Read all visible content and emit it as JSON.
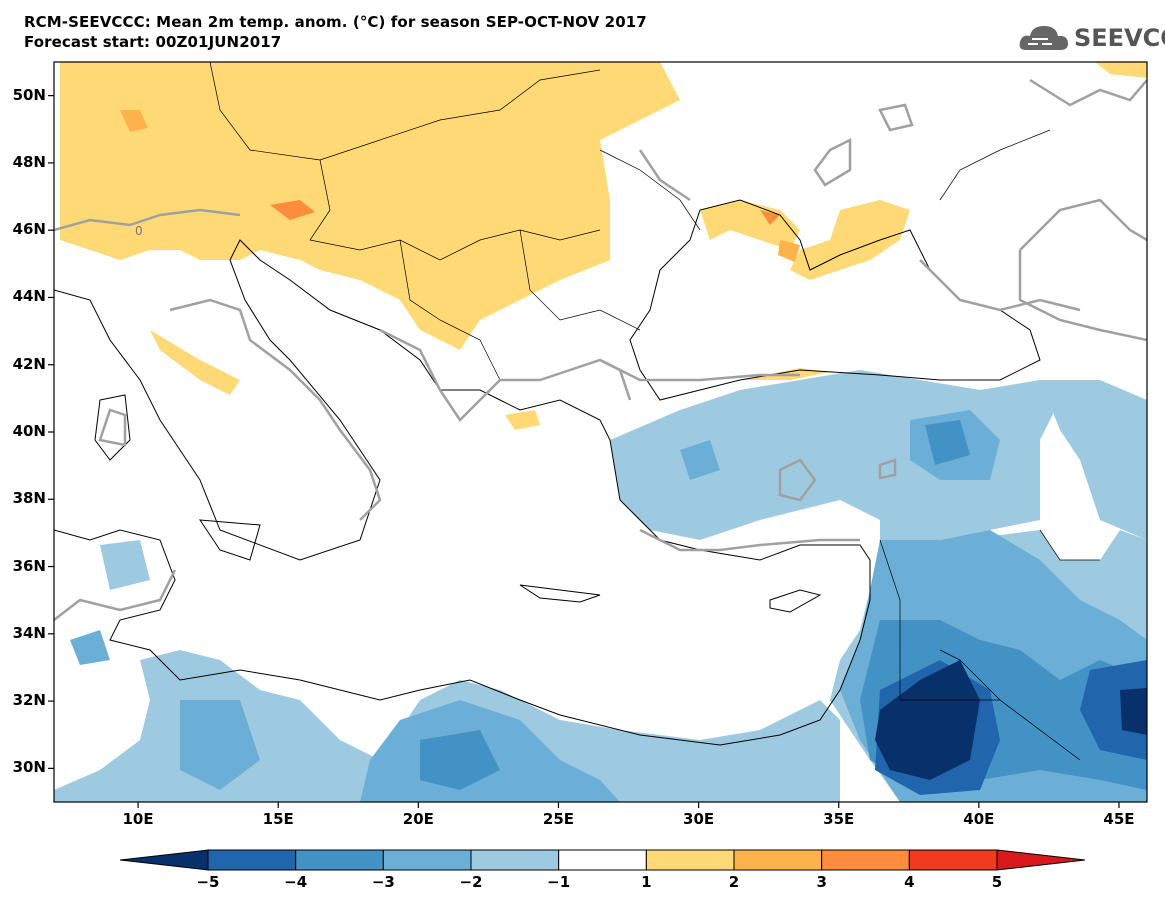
{
  "header": {
    "title_line1": "RCM-SEEVCCC: Mean 2m temp. anom. (°C) for season SEP-OCT-NOV 2017",
    "title_line2": "Forecast start: 00Z01JUN2017"
  },
  "logo": {
    "text": "SEEVCCC",
    "icon": "cloud-logo-icon",
    "color": "#555555"
  },
  "map": {
    "type": "filled-contour-map",
    "variable": "Mean 2m temp. anom. (°C)",
    "zero_contour_label": "0",
    "lat_ticks": [
      "50N",
      "48N",
      "46N",
      "44N",
      "42N",
      "40N",
      "38N",
      "36N",
      "34N",
      "32N",
      "30N"
    ],
    "lon_ticks": [
      "10E",
      "15E",
      "20E",
      "25E",
      "30E",
      "35E",
      "40E",
      "45E"
    ],
    "lat_range": [
      29,
      51
    ],
    "lon_range": [
      7,
      46
    ],
    "colors": {
      "warm_1_2": "#fed976",
      "warm_2_3": "#feb24c",
      "warm_3_4": "#fd8d3c",
      "cold_m1_m2": "#9ecae1",
      "cold_m2_m3": "#6baed6",
      "cold_m3_m4": "#4292c6",
      "cold_m4_m5": "#2166ac",
      "cold_below_m5": "#08306b",
      "zero_contour": "#a0a0a0",
      "coast": "#000000"
    }
  },
  "colorbar": {
    "ticks": [
      "−5",
      "−4",
      "−3",
      "−2",
      "−1",
      "1",
      "2",
      "3",
      "4",
      "5"
    ],
    "colors": [
      "#08306b",
      "#2166ac",
      "#4292c6",
      "#6baed6",
      "#9ecae1",
      "#ffffff",
      "#fed976",
      "#feb24c",
      "#fd8d3c",
      "#f03b20",
      "#d7191c"
    ]
  }
}
